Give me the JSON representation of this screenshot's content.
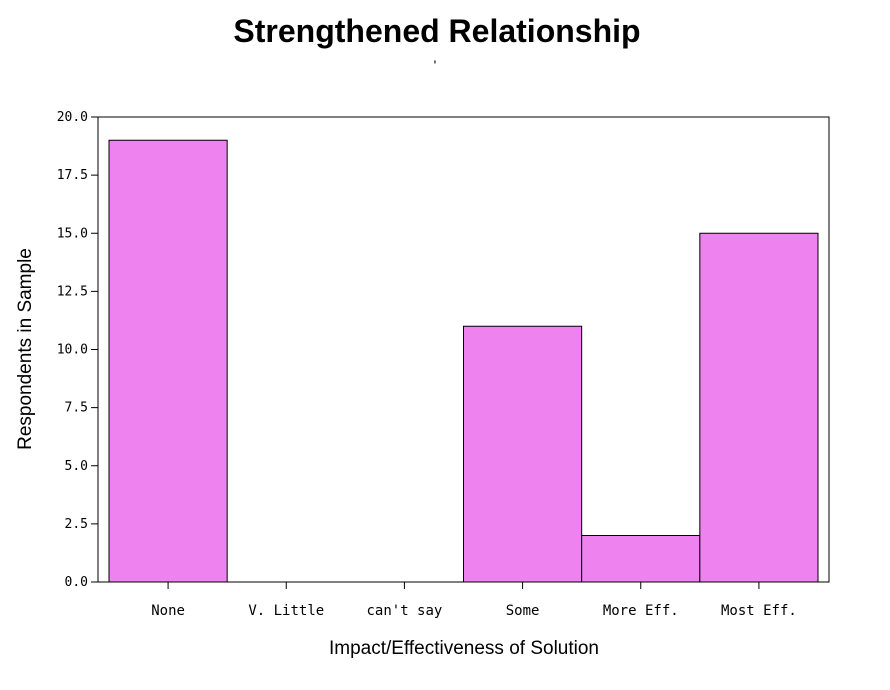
{
  "chart_data": {
    "type": "bar",
    "title": "Strengthened Relationship",
    "subtitle": "'",
    "xlabel": "Impact/Effectiveness of Solution",
    "ylabel": "Respondents in Sample",
    "categories": [
      "None",
      "V. Little",
      "can't say",
      "Some",
      "More Eff.",
      "Most Eff."
    ],
    "values": [
      19,
      0,
      0,
      11,
      2,
      15
    ],
    "ylim": [
      0,
      20
    ],
    "yticks": [
      0,
      2.5,
      5,
      7.5,
      10,
      12.5,
      15,
      17.5,
      20
    ],
    "ytick_labels": [
      "0.0",
      "2.5",
      "5.0",
      "7.5",
      "10.0",
      "12.5",
      "15.0",
      "17.5",
      "20.0"
    ],
    "bar_color": "#ee82ee",
    "grid": false,
    "legend": "none"
  }
}
